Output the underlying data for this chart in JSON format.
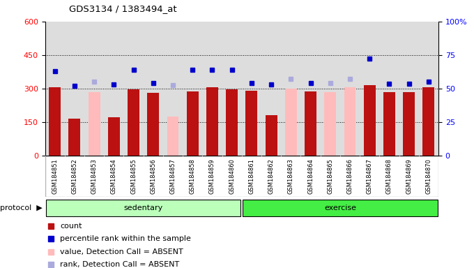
{
  "title": "GDS3134 / 1383494_at",
  "samples": [
    "GSM184851",
    "GSM184852",
    "GSM184853",
    "GSM184854",
    "GSM184855",
    "GSM184856",
    "GSM184857",
    "GSM184858",
    "GSM184859",
    "GSM184860",
    "GSM184861",
    "GSM184862",
    "GSM184863",
    "GSM184864",
    "GSM184865",
    "GSM184866",
    "GSM184867",
    "GSM184868",
    "GSM184869",
    "GSM184870"
  ],
  "bar_values": [
    305,
    165,
    285,
    170,
    295,
    280,
    175,
    287,
    305,
    297,
    290,
    180,
    300,
    287,
    283,
    305,
    315,
    285,
    285,
    305
  ],
  "absent_mask": [
    false,
    false,
    true,
    false,
    false,
    false,
    true,
    false,
    false,
    false,
    false,
    false,
    true,
    false,
    true,
    true,
    false,
    false,
    false,
    false
  ],
  "rank_values": [
    63,
    52,
    55,
    53,
    64,
    54,
    52.5,
    64,
    64,
    64,
    54,
    53,
    57,
    54,
    54,
    57,
    72,
    53.5,
    53.5,
    55
  ],
  "sedentary_range": [
    0,
    10
  ],
  "exercise_range": [
    10,
    20
  ],
  "left_ylim": [
    0,
    600
  ],
  "right_ylim": [
    0,
    100
  ],
  "left_yticks": [
    0,
    150,
    300,
    450,
    600
  ],
  "right_yticks": [
    0,
    25,
    50,
    75,
    100
  ],
  "right_yticklabels": [
    "0",
    "25",
    "50",
    "75",
    "100%"
  ],
  "grid_values": [
    150,
    300,
    450
  ],
  "bar_color_present": "#bb1111",
  "bar_color_absent": "#ffbbbb",
  "dot_color_present": "#0000cc",
  "dot_color_absent": "#aaaadd",
  "bg_color": "#dddddd",
  "label_bg_color": "#cccccc",
  "sedentary_color": "#bbffbb",
  "exercise_color": "#44ee44",
  "protocol_label": "protocol",
  "sedentary_label": "sedentary",
  "exercise_label": "exercise",
  "legend_items": [
    {
      "label": "count",
      "color": "#bb1111"
    },
    {
      "label": "percentile rank within the sample",
      "color": "#0000cc"
    },
    {
      "label": "value, Detection Call = ABSENT",
      "color": "#ffbbbb"
    },
    {
      "label": "rank, Detection Call = ABSENT",
      "color": "#aaaadd"
    }
  ]
}
